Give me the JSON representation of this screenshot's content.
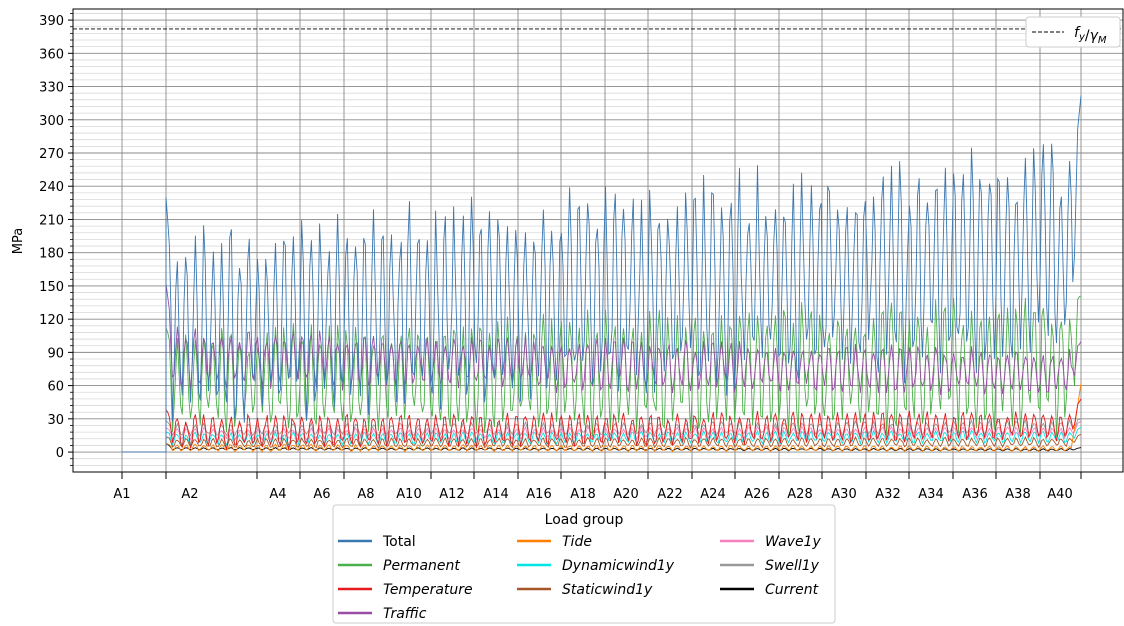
{
  "chart_data": {
    "type": "line",
    "ylabel": "MPa",
    "ylim": [
      -18,
      400
    ],
    "y_ticks": [
      0,
      30,
      60,
      90,
      120,
      150,
      180,
      210,
      240,
      270,
      300,
      330,
      360,
      390
    ],
    "y_minor_step": 6,
    "x_tick_labels": [
      "A1",
      "A2",
      "A4",
      "A6",
      "A8",
      "A10",
      "A12",
      "A14",
      "A16",
      "A18",
      "A20",
      "A22",
      "A24",
      "A26",
      "A28",
      "A30",
      "A32",
      "A34",
      "A36",
      "A38",
      "A40"
    ],
    "grid": true,
    "threshold": {
      "label": "f_y/γ_M",
      "value": 382,
      "style": "dashed",
      "color": "#000000",
      "legend_position": "top-right"
    },
    "legend": {
      "title": "Load group",
      "placement": "bottom-center"
    },
    "series": [
      {
        "name": "Total",
        "italic": false,
        "color": "#3a78b1",
        "base_from": 110,
        "amp_from": 80,
        "base_to": 180,
        "amp_to": 90,
        "early_peak": 230,
        "final_peak": 322
      },
      {
        "name": "Permanent",
        "italic": true,
        "color": "#4daf4a",
        "base_from": 65,
        "amp_from": 40,
        "base_to": 80,
        "amp_to": 58,
        "early_peak": 112,
        "final_peak": 140
      },
      {
        "name": "Temperature",
        "italic": true,
        "color": "#e41a1c",
        "base_from": 18,
        "amp_from": 15,
        "base_to": 24,
        "amp_to": 12,
        "early_peak": 38,
        "final_peak": 48
      },
      {
        "name": "Traffic",
        "italic": true,
        "color": "#984ea3",
        "base_from": 85,
        "amp_from": 25,
        "base_to": 72,
        "amp_to": 18,
        "early_peak": 152,
        "final_peak": 100
      },
      {
        "name": "Tide",
        "italic": true,
        "color": "#ff7f00",
        "base_from": 4,
        "amp_from": 3,
        "base_to": 3,
        "amp_to": 2,
        "early_peak": 8,
        "final_peak": 62
      },
      {
        "name": "Dynamicwind1y",
        "italic": true,
        "color": "#00e5e5",
        "base_from": 12,
        "amp_from": 5,
        "base_to": 14,
        "amp_to": 5,
        "early_peak": 18,
        "final_peak": 22
      },
      {
        "name": "Staticwind1y",
        "italic": true,
        "color": "#a65628",
        "base_from": 8,
        "amp_from": 4,
        "base_to": 9,
        "amp_to": 4,
        "early_peak": 14,
        "final_peak": 16
      },
      {
        "name": "Wave1y",
        "italic": true,
        "color": "#f781bf",
        "base_from": 16,
        "amp_from": 5,
        "base_to": 18,
        "amp_to": 5,
        "early_peak": 22,
        "final_peak": 28
      },
      {
        "name": "Swell1y",
        "italic": true,
        "color": "#999999",
        "base_from": 20,
        "amp_from": 5,
        "base_to": 22,
        "amp_to": 6,
        "early_peak": 28,
        "final_peak": 30
      },
      {
        "name": "Current",
        "italic": true,
        "color": "#000000",
        "base_from": 3,
        "amp_from": 1,
        "base_to": 2,
        "amp_to": 1,
        "early_peak": 8,
        "final_peak": 4
      }
    ]
  }
}
